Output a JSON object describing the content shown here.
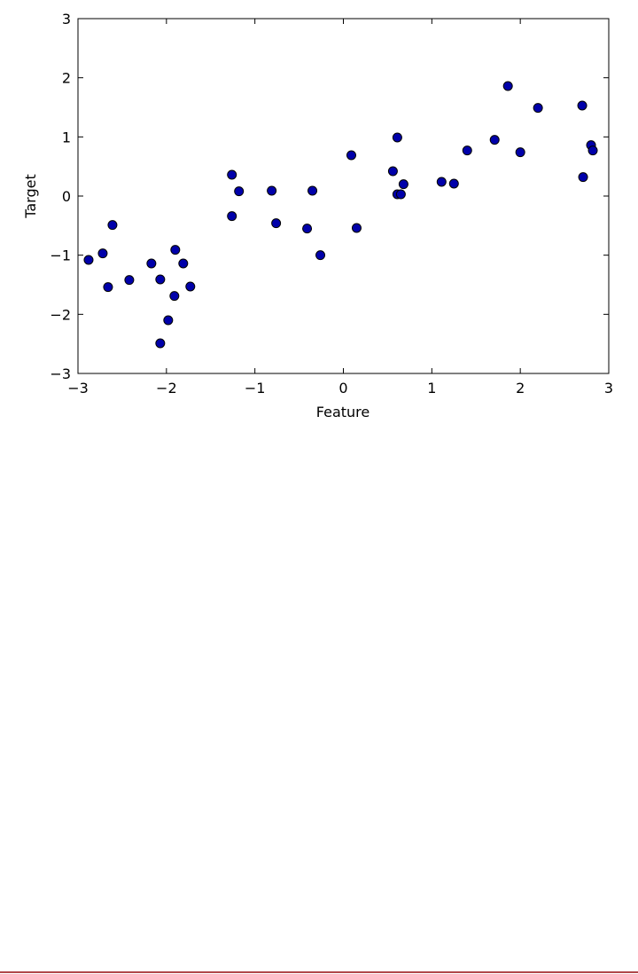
{
  "chart_data": {
    "type": "scatter",
    "xlabel": "Feature",
    "ylabel": "Target",
    "color": "#0000aa",
    "x": [
      -2.88,
      -2.72,
      -2.66,
      -2.61,
      -2.42,
      -2.17,
      -2.07,
      -2.07,
      -1.98,
      -1.91,
      -1.9,
      -1.81,
      -1.73,
      -1.26,
      -1.26,
      -1.18,
      -0.81,
      -0.76,
      -0.41,
      -0.35,
      -0.26,
      0.09,
      0.15,
      0.56,
      0.61,
      0.61,
      0.65,
      0.68,
      1.11,
      1.25,
      1.4,
      1.71,
      1.86,
      2.0,
      2.2,
      2.7,
      2.71,
      2.8,
      2.82
    ],
    "y": [
      -1.08,
      -0.97,
      -1.54,
      -0.49,
      -1.42,
      -1.14,
      -1.41,
      -2.49,
      -2.1,
      -1.69,
      -0.91,
      -1.14,
      -1.53,
      0.36,
      -0.34,
      0.08,
      0.09,
      -0.46,
      -0.55,
      0.09,
      -1.0,
      0.69,
      -0.54,
      0.42,
      0.99,
      0.03,
      0.03,
      0.2,
      0.24,
      0.21,
      0.77,
      0.95,
      1.86,
      0.74,
      1.49,
      1.53,
      0.32,
      0.86,
      0.77
    ],
    "xlim": [
      -3,
      3
    ],
    "ylim": [
      -3,
      3
    ],
    "xticks": [
      {
        "value": -3,
        "label": "−3"
      },
      {
        "value": -2,
        "label": "−2"
      },
      {
        "value": -1,
        "label": "−1"
      },
      0,
      1,
      2,
      3
    ],
    "yticks": [
      {
        "value": -3,
        "label": "−3"
      },
      {
        "value": -2,
        "label": "−2"
      },
      {
        "value": -1,
        "label": "−1"
      },
      0,
      1,
      2,
      3
    ]
  }
}
